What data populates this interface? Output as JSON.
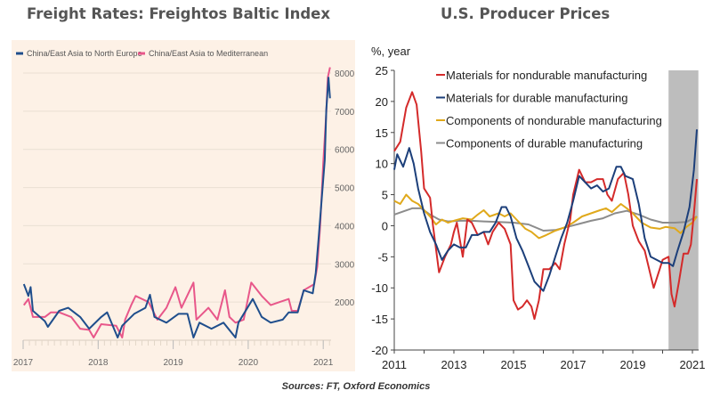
{
  "chart_data": [
    {
      "type": "line",
      "title": "Freight Rates: Freightos Baltic Index",
      "xlabel": "",
      "ylabel": "",
      "xlim": [
        2017,
        2021.1
      ],
      "ylim": [
        1000,
        8200
      ],
      "x_ticks": [
        "2017",
        "2018",
        "2019",
        "2020",
        "2021"
      ],
      "y_ticks": [
        "2000",
        "3000",
        "4000",
        "5000",
        "6000",
        "7000",
        "8000"
      ],
      "grid": "horizontal",
      "legend": "top-left",
      "background": "#fdf1e6",
      "series": [
        {
          "name": "China/East Asia to North Europe",
          "color": "#1f4e8c",
          "x": [
            2017.01,
            2017.07,
            2017.1,
            2017.13,
            2017.29,
            2017.33,
            2017.48,
            2017.6,
            2017.76,
            2017.88,
            2018.04,
            2018.12,
            2018.26,
            2018.32,
            2018.48,
            2018.63,
            2018.69,
            2018.75,
            2018.91,
            2019.07,
            2019.19,
            2019.27,
            2019.35,
            2019.51,
            2019.67,
            2019.83,
            2019.87,
            2020.06,
            2020.18,
            2020.3,
            2020.46,
            2020.54,
            2020.66,
            2020.74,
            2020.86,
            2020.9,
            2020.94,
            2020.98,
            2021.02,
            2021.04,
            2021.07,
            2021.09
          ],
          "y": [
            2470,
            2160,
            2390,
            1770,
            1500,
            1350,
            1770,
            1850,
            1610,
            1300,
            1610,
            1730,
            1070,
            1380,
            1690,
            1850,
            2190,
            1610,
            1460,
            1690,
            1690,
            1070,
            1460,
            1300,
            1460,
            1070,
            1460,
            2080,
            1610,
            1460,
            1540,
            1730,
            1730,
            2310,
            2230,
            2770,
            3700,
            4710,
            5720,
            7030,
            7880,
            7340
          ]
        },
        {
          "name": "China/East Asia to Mediterranean",
          "color": "#e8578a",
          "x": [
            2017.01,
            2017.07,
            2017.13,
            2017.29,
            2017.37,
            2017.48,
            2017.64,
            2017.76,
            2017.88,
            2017.94,
            2018.04,
            2018.24,
            2018.32,
            2018.36,
            2018.44,
            2018.5,
            2018.67,
            2018.79,
            2018.91,
            2019.03,
            2019.11,
            2019.27,
            2019.31,
            2019.47,
            2019.59,
            2019.69,
            2019.75,
            2019.83,
            2019.94,
            2020.04,
            2020.18,
            2020.3,
            2020.42,
            2020.54,
            2020.58,
            2020.66,
            2020.74,
            2020.88,
            2020.92,
            2020.96,
            2021.0,
            2021.04,
            2021.06,
            2021.09
          ],
          "y": [
            1920,
            2080,
            1610,
            1610,
            1730,
            1730,
            1610,
            1300,
            1270,
            1070,
            1420,
            1380,
            1070,
            1540,
            1920,
            2160,
            2000,
            1540,
            1850,
            2390,
            1850,
            2510,
            1540,
            1850,
            1540,
            2310,
            1610,
            1460,
            1540,
            2510,
            2160,
            1920,
            2000,
            2080,
            1770,
            1770,
            2310,
            2470,
            2930,
            4020,
            5640,
            6960,
            7880,
            8150
          ]
        }
      ]
    },
    {
      "type": "line",
      "title": "U.S. Producer Prices",
      "xlabel": "",
      "ylabel": "%, year",
      "xlim": [
        2011,
        2021.2
      ],
      "ylim": [
        -20,
        25
      ],
      "x_ticks": [
        "2011",
        "2013",
        "2015",
        "2017",
        "2019",
        "2021"
      ],
      "y_ticks": [
        "-20",
        "-15",
        "-10",
        "-5",
        "0",
        "5",
        "10",
        "15",
        "20",
        "25"
      ],
      "grid": "none",
      "legend": "top-center",
      "shaded_region": {
        "x": [
          2020.2,
          2021.2
        ],
        "color": "#bdbdbd"
      },
      "series": [
        {
          "name": "Materials for nondurable manufacturing",
          "color": "#d42a2a",
          "x": [
            2011,
            2011.2,
            2011.4,
            2011.6,
            2011.75,
            2011.9,
            2012.0,
            2012.2,
            2012.3,
            2012.5,
            2012.7,
            2012.9,
            2013.0,
            2013.1,
            2013.3,
            2013.45,
            2013.6,
            2013.8,
            2014.0,
            2014.15,
            2014.3,
            2014.5,
            2014.7,
            2014.9,
            2015.0,
            2015.15,
            2015.3,
            2015.45,
            2015.6,
            2015.7,
            2015.85,
            2016.0,
            2016.2,
            2016.4,
            2016.55,
            2016.7,
            2016.9,
            2017.0,
            2017.2,
            2017.4,
            2017.6,
            2017.8,
            2018.0,
            2018.15,
            2018.3,
            2018.5,
            2018.7,
            2018.85,
            2019.0,
            2019.2,
            2019.4,
            2019.6,
            2019.7,
            2019.9,
            2020.0,
            2020.2,
            2020.3,
            2020.4,
            2020.55,
            2020.7,
            2020.85,
            2020.95,
            2021.05,
            2021.15
          ],
          "y": [
            12,
            13.5,
            19,
            21.5,
            19.5,
            12,
            6,
            4.5,
            0,
            -7.5,
            -5,
            -3,
            -1,
            0.5,
            -5,
            1,
            0.5,
            -1.5,
            -1,
            -3,
            -1,
            0.5,
            -0.5,
            -3,
            -12,
            -13.5,
            -13,
            -12,
            -13,
            -15,
            -12,
            -7,
            -7,
            -6,
            -7,
            -3,
            1,
            5,
            9,
            7,
            7,
            7.5,
            7.5,
            5,
            4,
            7.5,
            8.5,
            5,
            0,
            -2.5,
            -4,
            -8,
            -10,
            -7,
            -5.5,
            -5,
            -11,
            -13,
            -9,
            -4.5,
            -4.5,
            -3,
            2,
            7.5
          ]
        },
        {
          "name": "Materials for durable manufacturing",
          "color": "#1c3f7a",
          "x": [
            2011,
            2011.1,
            2011.3,
            2011.5,
            2011.65,
            2011.8,
            2012.0,
            2012.2,
            2012.4,
            2012.6,
            2012.8,
            2013.0,
            2013.2,
            2013.4,
            2013.6,
            2013.8,
            2014.0,
            2014.2,
            2014.4,
            2014.6,
            2014.75,
            2014.9,
            2015.1,
            2015.3,
            2015.5,
            2015.7,
            2016.0,
            2016.2,
            2016.4,
            2016.6,
            2016.8,
            2017.0,
            2017.2,
            2017.4,
            2017.6,
            2017.8,
            2018.0,
            2018.2,
            2018.45,
            2018.6,
            2018.75,
            2019.0,
            2019.2,
            2019.4,
            2019.6,
            2019.8,
            2020.0,
            2020.2,
            2020.35,
            2020.5,
            2020.7,
            2020.9,
            2021.05,
            2021.15
          ],
          "y": [
            9,
            11.5,
            9.5,
            12.5,
            10,
            6,
            2,
            -1,
            -3,
            -5.5,
            -4,
            -3,
            -3.5,
            -3.5,
            -1.5,
            -1.5,
            -1,
            -1,
            0.5,
            3,
            3,
            1.5,
            -2,
            -4,
            -6.5,
            -9,
            -10.5,
            -8,
            -5,
            -2,
            0.5,
            4,
            8,
            7,
            6,
            6.5,
            5.5,
            6,
            9.5,
            9.5,
            8,
            7.5,
            3.5,
            -2,
            -5,
            -5.5,
            -6,
            -6,
            -6.5,
            -4,
            -1,
            3,
            9,
            15.5
          ]
        },
        {
          "name": "Components of nondurable manufacturing",
          "color": "#e0a91b",
          "x": [
            2011,
            2011.2,
            2011.4,
            2011.6,
            2011.8,
            2012.0,
            2012.2,
            2012.4,
            2012.6,
            2012.8,
            2013.0,
            2013.3,
            2013.6,
            2013.8,
            2014.0,
            2014.2,
            2014.5,
            2014.7,
            2014.9,
            2015.1,
            2015.4,
            2015.6,
            2015.85,
            2016.1,
            2016.4,
            2016.7,
            2017.0,
            2017.3,
            2017.6,
            2017.9,
            2018.1,
            2018.3,
            2018.6,
            2018.8,
            2019.0,
            2019.3,
            2019.6,
            2019.9,
            2020.1,
            2020.4,
            2020.6,
            2020.8,
            2021.0,
            2021.15
          ],
          "y": [
            4,
            3.5,
            5,
            4,
            3.5,
            2.5,
            1.5,
            0.2,
            1,
            0.5,
            0.8,
            1.2,
            1,
            1.8,
            2.5,
            1.5,
            2,
            1.5,
            2,
            1,
            -0.5,
            -1,
            -2,
            -1.5,
            -0.8,
            -0.3,
            0.5,
            1.5,
            2,
            2.5,
            2.8,
            2.2,
            3.5,
            2.8,
            2,
            0.5,
            -0.3,
            -0.5,
            -0.2,
            -0.4,
            -1.2,
            -0.2,
            0.5,
            1.5
          ]
        },
        {
          "name": "Components of durable manufacturing",
          "color": "#8c8c8c",
          "x": [
            2011,
            2011.3,
            2011.6,
            2011.9,
            2012.2,
            2012.5,
            2012.8,
            2013.2,
            2013.6,
            2014.0,
            2014.5,
            2015.0,
            2015.5,
            2016.0,
            2016.4,
            2016.8,
            2017.2,
            2017.6,
            2018.0,
            2018.4,
            2018.8,
            2019.2,
            2019.6,
            2020.0,
            2020.4,
            2020.8,
            2021.15
          ],
          "y": [
            1.8,
            2.3,
            2.8,
            2.8,
            1.8,
            1,
            0.7,
            0.8,
            0.8,
            0.7,
            0.6,
            0.5,
            0.2,
            -0.8,
            -0.7,
            -0.2,
            0.3,
            0.8,
            1.2,
            2,
            2.4,
            1.8,
            1,
            0.5,
            0.5,
            0.6,
            1.5
          ]
        }
      ]
    }
  ],
  "source": "Sources: FT, Oxford Economics"
}
